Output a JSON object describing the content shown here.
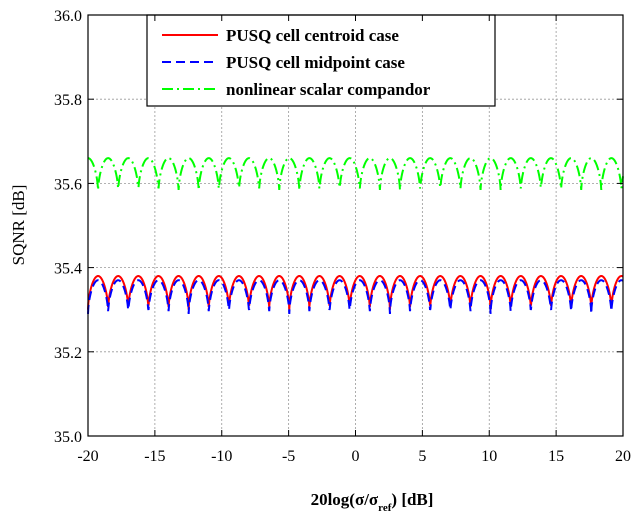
{
  "chart_data": {
    "type": "line",
    "xlabel_parts": {
      "main": "20log(σ/σ",
      "sub": "ref",
      "tail": ") [dB]"
    },
    "ylabel": "SQNR [dB]",
    "xlim": [
      -20,
      20
    ],
    "ylim": [
      35.0,
      36.0
    ],
    "x_ticks": [
      -20,
      -15,
      -10,
      -5,
      0,
      5,
      10,
      15,
      20
    ],
    "x_tick_labels": [
      "-20",
      "-15",
      "-10",
      "-5",
      "0",
      "5",
      "10",
      "15",
      "20"
    ],
    "y_ticks": [
      35.0,
      35.2,
      35.4,
      35.6,
      35.8,
      36.0
    ],
    "y_tick_labels": [
      "35.0",
      "35.2",
      "35.4",
      "35.6",
      "35.8",
      "36.0"
    ],
    "grid": true,
    "legend_position": "top-center",
    "period_db": 1.505,
    "series": [
      {
        "name": "PUSQ cell centroid case",
        "color": "#ff0000",
        "dash": "solid",
        "min": 35.3,
        "max": 35.38
      },
      {
        "name": "PUSQ cell midpoint case",
        "color": "#0000ff",
        "dash": "dashed",
        "min": 35.29,
        "max": 35.37
      },
      {
        "name": "nonlinear scalar compandor",
        "color": "#00ff00",
        "dash": "dashdot",
        "min": 35.58,
        "max": 35.66
      }
    ]
  }
}
